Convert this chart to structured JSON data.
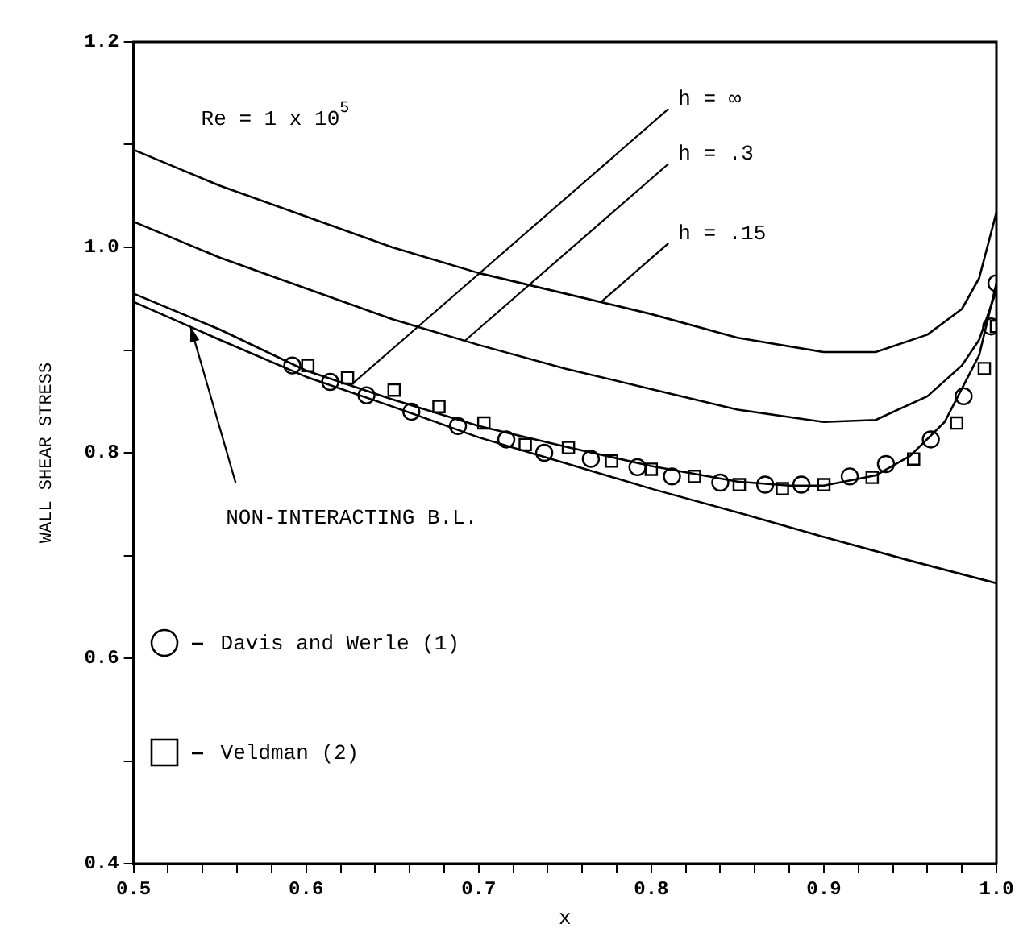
{
  "chart_data": {
    "type": "line",
    "xlabel": "x",
    "ylabel": "WALL SHEAR STRESS",
    "xlim": [
      0.5,
      1.0
    ],
    "ylim": [
      0.4,
      1.2
    ],
    "xticks": [
      0.5,
      {
        "value": 0.52,
        "label": null
      },
      {
        "value": 0.54,
        "label": null
      },
      {
        "value": 0.56,
        "label": null
      },
      {
        "value": 0.58,
        "label": null
      },
      0.6,
      {
        "value": 0.62,
        "label": null
      },
      {
        "value": 0.64,
        "label": null
      },
      {
        "value": 0.66,
        "label": null
      },
      {
        "value": 0.68,
        "label": null
      },
      0.7,
      {
        "value": 0.72,
        "label": null
      },
      {
        "value": 0.74,
        "label": null
      },
      {
        "value": 0.76,
        "label": null
      },
      {
        "value": 0.78,
        "label": null
      },
      0.8,
      {
        "value": 0.82,
        "label": null
      },
      {
        "value": 0.84,
        "label": null
      },
      {
        "value": 0.86,
        "label": null
      },
      {
        "value": 0.88,
        "label": null
      },
      0.9,
      {
        "value": 0.92,
        "label": null
      },
      {
        "value": 0.94,
        "label": null
      },
      {
        "value": 0.96,
        "label": null
      },
      {
        "value": 0.98,
        "label": null
      },
      {
        "value": 1.0,
        "label": "1.0"
      }
    ],
    "yticks": [
      0.4,
      {
        "value": 0.5,
        "label": null
      },
      0.6,
      {
        "value": 0.7,
        "label": null
      },
      0.8,
      {
        "value": 0.9,
        "label": null
      },
      {
        "value": 1.0,
        "label": "1.0"
      },
      {
        "value": 1.1,
        "label": null
      },
      1.2
    ],
    "grid": false,
    "legend": "bottom left",
    "series": [
      {
        "type": "line",
        "color": "#000000",
        "marker": "none",
        "x": [
          0.5,
          0.55,
          0.6,
          0.65,
          0.7,
          0.75,
          0.8,
          0.85,
          0.9,
          0.93,
          0.96,
          0.98,
          0.99,
          1.0
        ],
        "values": [
          1.095,
          1.06,
          1.03,
          1.0,
          0.975,
          0.955,
          0.935,
          0.912,
          0.898,
          0.898,
          0.915,
          0.94,
          0.97,
          1.034
        ]
      },
      {
        "type": "line",
        "color": "#000000",
        "marker": "none",
        "x": [
          0.5,
          0.55,
          0.6,
          0.65,
          0.7,
          0.75,
          0.8,
          0.85,
          0.9,
          0.93,
          0.96,
          0.98,
          0.99,
          1.0
        ],
        "values": [
          1.025,
          0.99,
          0.96,
          0.93,
          0.905,
          0.882,
          0.862,
          0.842,
          0.83,
          0.832,
          0.855,
          0.885,
          0.91,
          0.958
        ]
      },
      {
        "type": "line",
        "color": "#000000",
        "marker": "none",
        "x": [
          0.5,
          0.55,
          0.6,
          0.65,
          0.7,
          0.75,
          0.8,
          0.85,
          0.88,
          0.9,
          0.93,
          0.95,
          0.97,
          0.99,
          1.0
        ],
        "values": [
          0.955,
          0.92,
          0.88,
          0.852,
          0.826,
          0.806,
          0.787,
          0.772,
          0.768,
          0.768,
          0.778,
          0.797,
          0.83,
          0.895,
          0.965
        ]
      },
      {
        "type": "line",
        "color": "#000000",
        "marker": "none",
        "x": [
          0.5,
          0.55,
          0.6,
          0.65,
          0.7,
          0.75,
          0.8,
          0.85,
          0.9,
          0.95,
          1.0
        ],
        "values": [
          0.947,
          0.91,
          0.874,
          0.845,
          0.815,
          0.79,
          0.765,
          0.742,
          0.718,
          0.695,
          0.673
        ]
      },
      {
        "type": "scatter",
        "name": "Davis and Werle (1)",
        "color": "#000000",
        "marker": "circle",
        "x": [
          0.592,
          0.614,
          0.635,
          0.661,
          0.688,
          0.716,
          0.738,
          0.765,
          0.792,
          0.812,
          0.84,
          0.866,
          0.887,
          0.915,
          0.936,
          0.962,
          0.981,
          0.997,
          1.0
        ],
        "values": [
          0.885,
          0.869,
          0.856,
          0.84,
          0.826,
          0.813,
          0.8,
          0.794,
          0.786,
          0.777,
          0.771,
          0.769,
          0.769,
          0.777,
          0.789,
          0.813,
          0.855,
          0.923,
          0.965
        ]
      },
      {
        "type": "scatter",
        "name": "Veldman (2)",
        "color": "#000000",
        "marker": "square",
        "x": [
          0.601,
          0.624,
          0.651,
          0.677,
          0.703,
          0.727,
          0.752,
          0.777,
          0.8,
          0.825,
          0.851,
          0.876,
          0.9,
          0.928,
          0.952,
          0.977,
          0.993,
          1.0
        ],
        "values": [
          0.885,
          0.873,
          0.861,
          0.845,
          0.829,
          0.808,
          0.805,
          0.792,
          0.784,
          0.777,
          0.769,
          0.765,
          0.769,
          0.776,
          0.794,
          0.829,
          0.882,
          0.923
        ]
      }
    ],
    "annotations": [
      "Re = 1 x 10$^{5}$",
      {
        "text": "h = ∞",
        "x": 0.626,
        "y": 0.866
      },
      {
        "text": "h = .3",
        "x": 0.692,
        "y": 0.909
      },
      {
        "text": "h = .15",
        "x": 0.771,
        "y": 0.947
      },
      {
        "text": "NON-INTERACTING B.L.",
        "x": 0.533,
        "y": 0.923
      }
    ]
  }
}
